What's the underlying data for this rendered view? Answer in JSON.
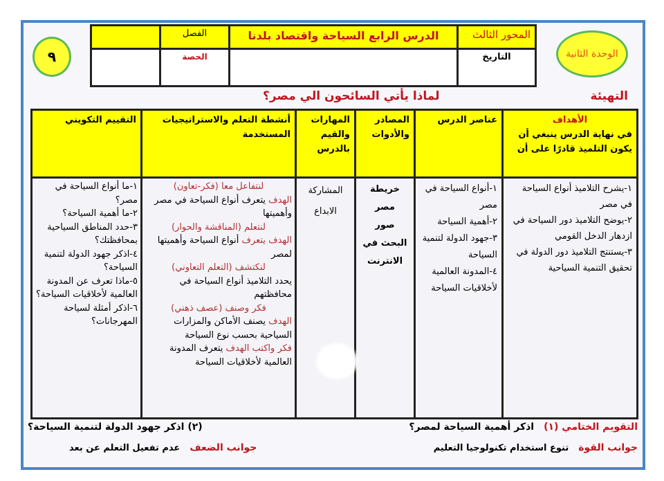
{
  "unit_badge": "الوحدة الثانية",
  "lesson_number": "٩",
  "header": {
    "axis": "المحور الثالث",
    "lesson_title": "الدرس الرابع السياحة واقتصاد بلدنا",
    "class_label": "الفصل",
    "class_value": "",
    "date_label": "التاريخ",
    "date_value": "",
    "period_label": "الحصة",
    "period_value": ""
  },
  "warmup": {
    "label": "التهيئة",
    "question": "لماذا يأتي السائحون الي مصر؟"
  },
  "table": {
    "headers": {
      "objectives_title": "الأهداف",
      "objectives_intro": "في نهاية الدرس ينبغي أن يكون التلميذ قادرًا على أن",
      "elements": "عناصر الدرس",
      "resources": "المصادر والأدوات",
      "skills": "المهارات والقيم بالدرس",
      "activities": "أنشطة التعلم والاستراتيجيات المستخدمة",
      "assessment": "التقييم التكويني"
    },
    "objectives": [
      "١-يشرح التلاميذ أنواع السياحة في مصر",
      "٢-يوضح التلاميذ دور السياحة في ازدهار الدخل القومي",
      "٣-يستنتج التلاميذ دور الدولة في تحقيق التنمية السياحية"
    ],
    "elements": [
      "١-أنواع السياحة في مصر",
      "٢-أهمية السياحة",
      "٣-جهود الدولة لتنمية السياحة",
      "٤-المدونة العالمية لأخلاقيات السياحة"
    ],
    "resources": [
      "خريطة",
      "مصر",
      "صور",
      "البحث في",
      "الانترنت"
    ],
    "skills": [
      "المشاركة",
      "الابداع"
    ],
    "activities": [
      {
        "strategy": "لنتفاعل معا (فكر-تعاون)",
        "goal_label": "الهدف",
        "text": "يتعرف أنواع السياحة في مصر وأهميتها"
      },
      {
        "strategy": "لنتعلم (المناقشة والحوار)",
        "goal_label": "الهدف يتعرف",
        "text": "أنواع السياحة وأهميتها لمصر"
      },
      {
        "strategy": "لنكتشف (التعلم التعاوني)",
        "goal_label": "",
        "text": "يحدد التلاميذ أنواع السياحة في محافظتهم"
      },
      {
        "strategy": "فكر وصنف (عصف ذهني)",
        "goal_label": "الهدف",
        "text": "يصنف الأماكن والمزارات السياحية بحسب نوع السياحة"
      },
      {
        "strategy": "",
        "goal_label": "فكر واكتب الهدف",
        "text": "يتعرف المدونة العالمية لأخلاقيات السياحة"
      }
    ],
    "assessment": [
      "١-ما أنواع السياحة في مصر؟",
      "٢-ما أهمية السياحة؟",
      "٣-حدد المناطق السياحية بمحافظتك؟",
      "٤-اذكر جهود الدولة لتنمية السياحة؟",
      "٥-ماذا تعرف عن المدونة العالمية لأخلاقيات السياحة؟",
      "٦-اذكر أمثلة لسياحة المهرجانات؟"
    ]
  },
  "final": {
    "label": "التقويم الختامي (١)",
    "q1": "اذكر أهمية السياحة لمصر؟",
    "q2": "(٢)  اذكر جهود الدولة لتنمية السياحة؟",
    "strengths_label": "جوانب القوة",
    "strengths": "تنوع استخدام تكنولوجيا التعليم",
    "weaknesses_label": "جوانب الضعف",
    "weaknesses": "عدم تفعيل التعلم عن بعد"
  },
  "colors": {
    "yellow": "#ffff00",
    "frame_blue": "#4a86c8",
    "red": "#c0141c",
    "oval_border": "#5cb85c"
  }
}
